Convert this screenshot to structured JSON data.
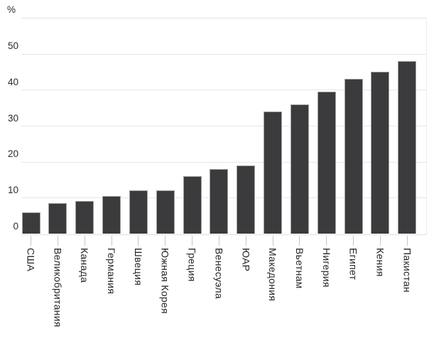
{
  "chart_data": {
    "type": "bar",
    "title": "",
    "unit_label": "%",
    "categories": [
      "США",
      "Великобритания",
      "Канада",
      "Германия",
      "Швеция",
      "Южная Корея",
      "Греция",
      "Венесуэла",
      "ЮАР",
      "Македония",
      "Вьетнам",
      "Нигерия",
      "Египет",
      "Кения",
      "Пакистан"
    ],
    "values": [
      6,
      8.5,
      9,
      10.5,
      12,
      12,
      16,
      18,
      19,
      34,
      36,
      39.5,
      43,
      45,
      48
    ],
    "xlabel": "",
    "ylabel": "%",
    "ylim": [
      0,
      60
    ],
    "yticks": [
      0,
      10,
      20,
      30,
      40,
      50
    ],
    "grid": "horizontal",
    "legend": "none",
    "bar_color": "#3b3b3d",
    "bar_border_color": "#a2a2a2"
  }
}
